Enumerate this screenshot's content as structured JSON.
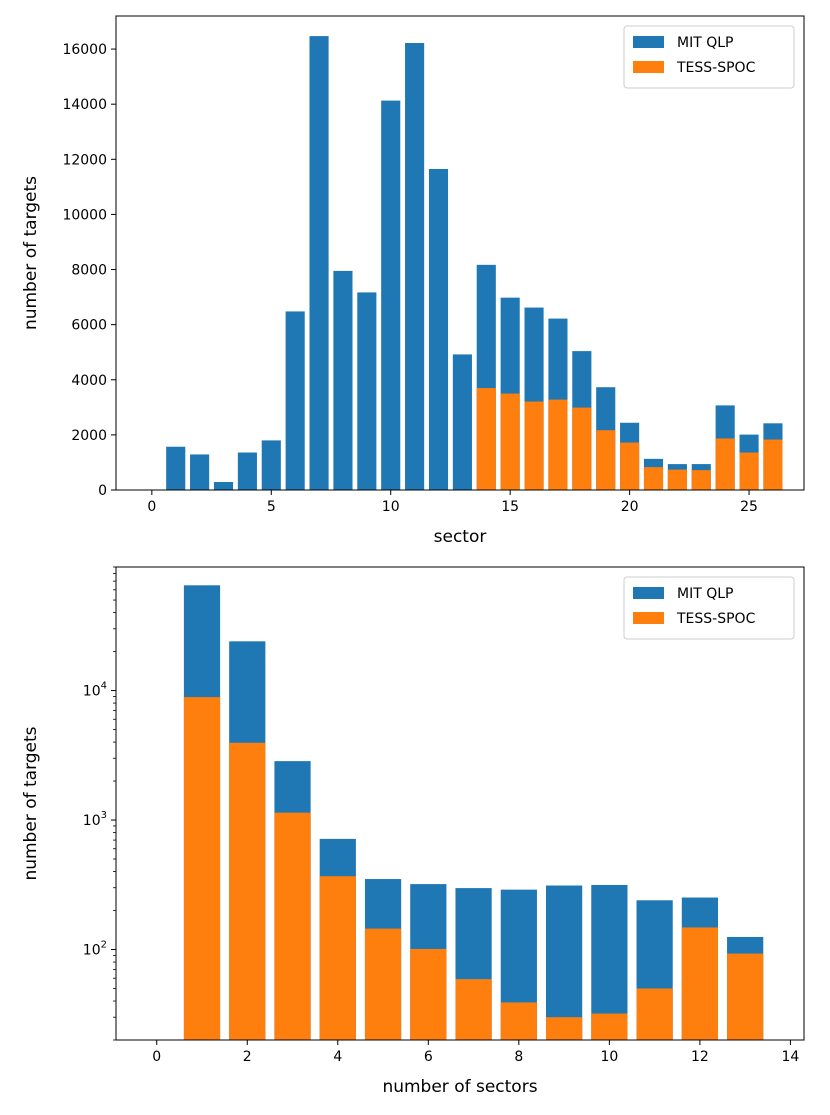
{
  "colors": {
    "mit_qlp": "#1f77b4",
    "tess_spoc": "#ff7f0e",
    "legend_border": "#cccccc"
  },
  "chart_data": [
    {
      "type": "bar",
      "stacking": "overlay",
      "xlabel": "sector",
      "ylabel": "number of targets",
      "xlim": [
        -1.5,
        27.3
      ],
      "ylim": [
        0,
        17200
      ],
      "yscale": "linear",
      "xticks": [
        0,
        5,
        10,
        15,
        20,
        25
      ],
      "yticks": [
        0,
        2000,
        4000,
        6000,
        8000,
        10000,
        12000,
        14000,
        16000
      ],
      "legend_position": "upper-right",
      "x": [
        1,
        2,
        3,
        4,
        5,
        6,
        7,
        8,
        9,
        10,
        11,
        12,
        13,
        14,
        15,
        16,
        17,
        18,
        19,
        20,
        21,
        22,
        23,
        24,
        25,
        26
      ],
      "series": [
        {
          "name": "MIT QLP",
          "values": [
            1570,
            1290,
            290,
            1360,
            1800,
            6480,
            16470,
            7950,
            7170,
            14130,
            16220,
            11650,
            4920,
            8170,
            6980,
            6620,
            6220,
            5040,
            3730,
            2440,
            1130,
            940,
            940,
            3070,
            2010,
            2420
          ]
        },
        {
          "name": "TESS-SPOC",
          "values": [
            0,
            0,
            0,
            0,
            0,
            0,
            0,
            0,
            0,
            0,
            0,
            0,
            0,
            3700,
            3500,
            3210,
            3280,
            2990,
            2170,
            1720,
            830,
            740,
            720,
            1870,
            1360,
            1830
          ]
        }
      ]
    },
    {
      "type": "bar",
      "stacking": "overlay",
      "xlabel": "number of sectors",
      "ylabel": "number of targets",
      "xlim": [
        -0.9,
        14.3
      ],
      "ylim": [
        20,
        90000
      ],
      "yscale": "log",
      "xticks": [
        0,
        2,
        4,
        6,
        8,
        10,
        12,
        14
      ],
      "yticks": [
        100,
        1000,
        10000
      ],
      "ytick_labels": [
        [
          "10",
          "2"
        ],
        [
          "10",
          "3"
        ],
        [
          "10",
          "4"
        ]
      ],
      "legend_position": "upper-right",
      "x": [
        1,
        2,
        3,
        4,
        5,
        6,
        7,
        8,
        9,
        10,
        11,
        12,
        13
      ],
      "series": [
        {
          "name": "MIT QLP",
          "values": [
            65000,
            24000,
            2850,
            715,
            350,
            320,
            298,
            290,
            312,
            315,
            240,
            252,
            125
          ]
        },
        {
          "name": "TESS-SPOC",
          "values": [
            8900,
            3950,
            1140,
            368,
            145,
            101,
            59,
            39,
            30,
            32,
            50,
            148,
            93
          ]
        }
      ]
    }
  ]
}
